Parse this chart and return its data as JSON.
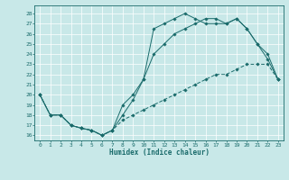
{
  "xlabel": "Humidex (Indice chaleur)",
  "background_color": "#c8e8e8",
  "line_color": "#1a6b6b",
  "grid_color": "#ffffff",
  "xlim": [
    -0.5,
    23.5
  ],
  "ylim": [
    15.5,
    28.8
  ],
  "yticks": [
    16,
    17,
    18,
    19,
    20,
    21,
    22,
    23,
    24,
    25,
    26,
    27,
    28
  ],
  "xticks": [
    0,
    1,
    2,
    3,
    4,
    5,
    6,
    7,
    8,
    9,
    10,
    11,
    12,
    13,
    14,
    15,
    16,
    17,
    18,
    19,
    20,
    21,
    22,
    23
  ],
  "line1_x": [
    0,
    1,
    2,
    3,
    4,
    5,
    6,
    7,
    8,
    9,
    10,
    11,
    12,
    13,
    14,
    15,
    16,
    17,
    18,
    19,
    20,
    21,
    22,
    23
  ],
  "line1_y": [
    20,
    18,
    18,
    17,
    16.7,
    16.5,
    16,
    16.5,
    19,
    20,
    21.5,
    26.5,
    27,
    27.5,
    28,
    27.5,
    27,
    27,
    27,
    27.5,
    26.5,
    25,
    23.5,
    21.5
  ],
  "line2_x": [
    0,
    1,
    2,
    3,
    4,
    5,
    6,
    7,
    8,
    9,
    10,
    11,
    12,
    13,
    14,
    15,
    16,
    17,
    18,
    19,
    20,
    21,
    22,
    23
  ],
  "line2_y": [
    20,
    18,
    18,
    17,
    16.7,
    16.5,
    16,
    16.5,
    17.5,
    18,
    18.5,
    19,
    19.5,
    20,
    20.5,
    21,
    21.5,
    22,
    22,
    22.5,
    23,
    23,
    23,
    21.5
  ],
  "line3_x": [
    0,
    1,
    2,
    3,
    4,
    5,
    6,
    7,
    8,
    9,
    10,
    11,
    12,
    13,
    14,
    15,
    16,
    17,
    18,
    19,
    20,
    21,
    22,
    23
  ],
  "line3_y": [
    20,
    18,
    18,
    17,
    16.7,
    16.5,
    16,
    16.5,
    18,
    19.5,
    21.5,
    24,
    25,
    26,
    26.5,
    27,
    27.5,
    27.5,
    27,
    27.5,
    26.5,
    25,
    24,
    21.5
  ]
}
